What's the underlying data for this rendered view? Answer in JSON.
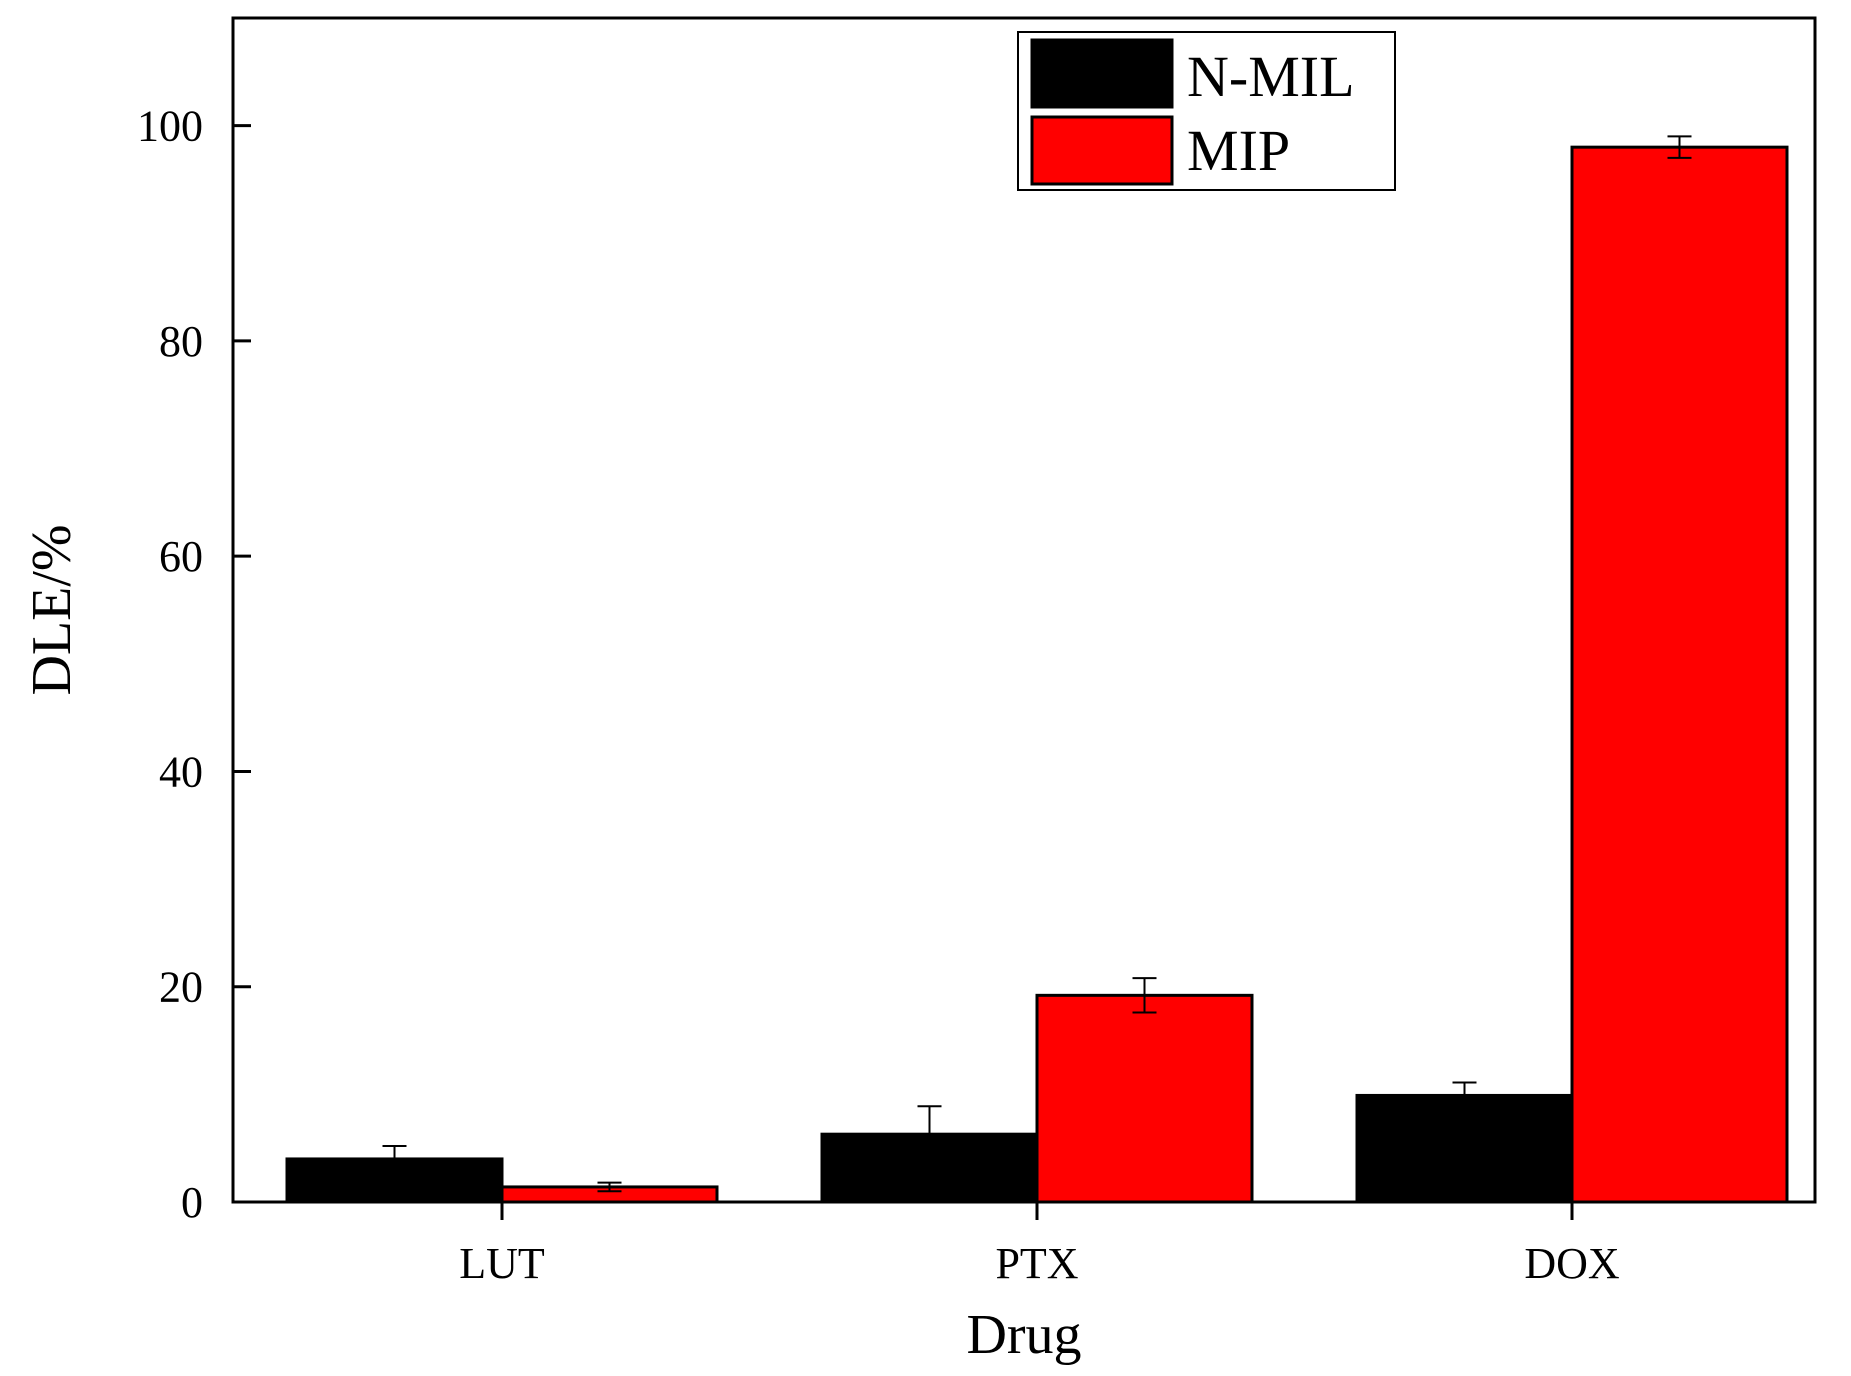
{
  "chart_data": {
    "type": "bar",
    "title": "",
    "xlabel": "Drug",
    "ylabel": "DLE/%",
    "categories": [
      "LUT",
      "PTX",
      "DOX"
    ],
    "ylim": [
      0,
      110
    ],
    "yticks": [
      "0",
      "20",
      "40",
      "60",
      "80",
      "100"
    ],
    "series": [
      {
        "name": "N-MIL",
        "color": "#000000",
        "values": [
          4.0,
          6.3,
          9.9
        ],
        "errors": [
          1.2,
          2.6,
          1.2
        ]
      },
      {
        "name": "MIP",
        "color": "#ff0000",
        "values": [
          1.4,
          19.2,
          98.0
        ],
        "errors": [
          0.4,
          1.6,
          1.0
        ]
      }
    ],
    "legend_position": "top-right",
    "grid": false
  }
}
